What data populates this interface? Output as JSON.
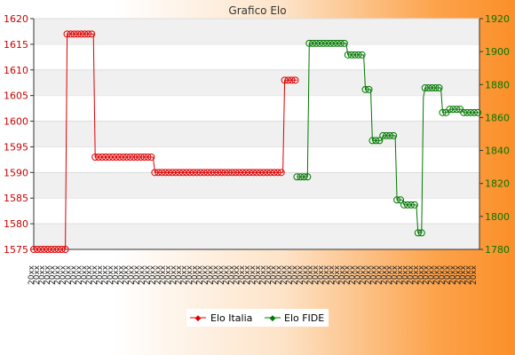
{
  "chart_data": {
    "type": "line",
    "title": "Grafico Elo",
    "grid": true,
    "legend_position": "bottom-center",
    "colors": {
      "italia": "#dd0000",
      "fide": "#007700"
    },
    "y_left": {
      "ylim": [
        1575,
        1620
      ],
      "ticks": [
        1575,
        1580,
        1585,
        1590,
        1595,
        1600,
        1605,
        1610,
        1615,
        1620
      ]
    },
    "y_right": {
      "ylim": [
        1780,
        1920
      ],
      "ticks": [
        1780,
        1800,
        1820,
        1840,
        1860,
        1880,
        1900,
        1920
      ]
    },
    "x_labels_note": "illegible overlapping date labels",
    "series": [
      {
        "name": "Elo Italia",
        "axis": "left",
        "points": [
          [
            0,
            1575
          ],
          [
            9,
            1575
          ],
          [
            9.5,
            1617
          ],
          [
            17,
            1617
          ],
          [
            17.5,
            1593
          ],
          [
            34,
            1593
          ],
          [
            34.5,
            1590
          ],
          [
            71,
            1590
          ],
          [
            71.5,
            1608
          ],
          [
            75,
            1608
          ]
        ]
      },
      {
        "name": "Elo FIDE",
        "axis": "right",
        "points": [
          [
            75,
            1824
          ],
          [
            78,
            1824
          ],
          [
            78.5,
            1905
          ],
          [
            89,
            1905
          ],
          [
            89.5,
            1898
          ],
          [
            94,
            1898
          ],
          [
            94.5,
            1877
          ],
          [
            96,
            1877
          ],
          [
            96.5,
            1846
          ],
          [
            99,
            1846
          ],
          [
            99.5,
            1849
          ],
          [
            103,
            1849
          ],
          [
            103.5,
            1810
          ],
          [
            105,
            1810
          ],
          [
            105.5,
            1807
          ],
          [
            109,
            1807
          ],
          [
            109.5,
            1790
          ],
          [
            110.5,
            1790
          ],
          [
            111,
            1872
          ],
          [
            111.5,
            1878
          ],
          [
            116,
            1878
          ],
          [
            116.5,
            1863
          ],
          [
            118,
            1863
          ],
          [
            118.5,
            1865
          ],
          [
            122,
            1865
          ],
          [
            122.5,
            1863
          ],
          [
            127,
            1863
          ]
        ]
      }
    ]
  }
}
